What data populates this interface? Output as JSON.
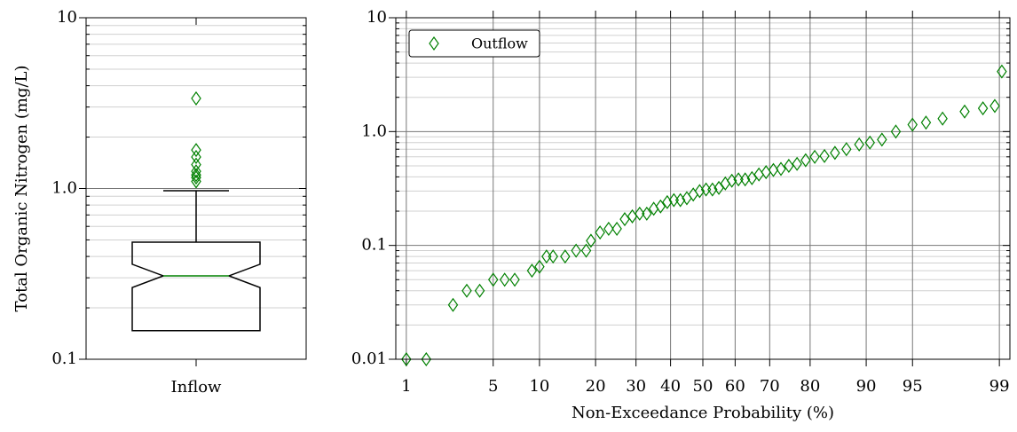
{
  "chart_data": [
    {
      "type": "box",
      "ylabel": "Total Organic Nitrogen (mg/L)",
      "log_y": true,
      "grid": true,
      "ylim": [
        0.1,
        10
      ],
      "yticks": [
        0.1,
        {
          "value": 1,
          "label": "1.0"
        },
        10
      ],
      "categories": [
        "Inflow"
      ],
      "box_color": "#000000",
      "median_color": "#008000",
      "flier_color": "#008000",
      "boxes": [
        {
          "whislo": 0.147,
          "q1": 0.147,
          "notch_low": 0.263,
          "med": 0.308,
          "notch_high": 0.36,
          "q3": 0.485,
          "whishi": 0.97,
          "fliers": [
            3.37,
            1.68,
            1.53,
            1.38,
            1.26,
            1.2,
            1.16,
            1.1
          ]
        }
      ]
    },
    {
      "type": "probability",
      "xlabel": "Non-Exceedance Probability (%)",
      "log_y": true,
      "grid": true,
      "legend": "upper left",
      "xlim": [
        0.8,
        99.2
      ],
      "xticks": [
        1,
        5,
        10,
        20,
        30,
        40,
        50,
        60,
        70,
        80,
        90,
        95,
        99
      ],
      "ylim": [
        0.01,
        10
      ],
      "yticks": [
        0.01,
        0.1,
        {
          "value": 1,
          "label": "1.0"
        },
        10
      ],
      "series": [
        {
          "name": "Outflow",
          "color": "#008000",
          "x": [
            1,
            1.5,
            2.5,
            3.2,
            4,
            5,
            6,
            7,
            9,
            10,
            11,
            12,
            14,
            16,
            18,
            19,
            21,
            23,
            25,
            27,
            29,
            31,
            33,
            35,
            37,
            39,
            41,
            43,
            45,
            47,
            49,
            51,
            53,
            55,
            57,
            59,
            61,
            63,
            65,
            67,
            69,
            71,
            73,
            75,
            77,
            79,
            81,
            83,
            85,
            87,
            89,
            90.5,
            92,
            93.5,
            95,
            96,
            97,
            98,
            98.6,
            98.9,
            99.05
          ],
          "values": [
            0.01,
            0.01,
            0.03,
            0.04,
            0.04,
            0.05,
            0.05,
            0.05,
            0.06,
            0.065,
            0.08,
            0.08,
            0.08,
            0.09,
            0.09,
            0.11,
            0.13,
            0.14,
            0.14,
            0.17,
            0.18,
            0.19,
            0.19,
            0.21,
            0.22,
            0.24,
            0.25,
            0.25,
            0.26,
            0.28,
            0.3,
            0.31,
            0.31,
            0.32,
            0.35,
            0.37,
            0.38,
            0.38,
            0.39,
            0.42,
            0.44,
            0.46,
            0.47,
            0.5,
            0.52,
            0.56,
            0.6,
            0.61,
            0.65,
            0.7,
            0.77,
            0.8,
            0.85,
            1.0,
            1.15,
            1.2,
            1.3,
            1.5,
            1.6,
            1.68,
            3.37
          ]
        }
      ]
    }
  ]
}
